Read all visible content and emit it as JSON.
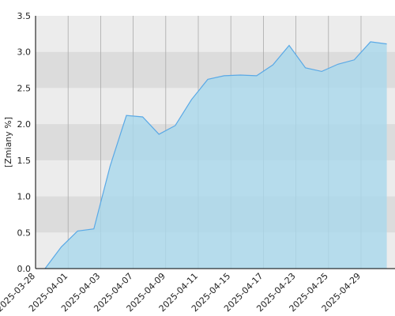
{
  "chart_data": {
    "type": "area",
    "y_label": "[Zmiany %]",
    "categories": [
      "2025-03-28",
      null,
      "2025-04-01",
      null,
      "2025-04-03",
      null,
      "2025-04-07",
      null,
      "2025-04-09",
      null,
      "2025-04-11",
      null,
      "2025-04-15",
      null,
      "2025-04-17",
      null,
      "2025-04-23",
      null,
      "2025-04-25",
      null,
      "2025-04-29",
      null
    ],
    "values": [
      0.0,
      0.3,
      0.52,
      0.55,
      1.42,
      2.12,
      2.1,
      1.86,
      1.98,
      2.34,
      2.62,
      2.67,
      2.68,
      2.67,
      2.82,
      3.09,
      2.78,
      2.73,
      2.83,
      2.89,
      3.14,
      3.11
    ],
    "color": "#5aa9e6",
    "ylim": [
      0,
      3.5
    ],
    "yticks": [
      {
        "value": 0,
        "label": "0.0"
      },
      {
        "value": 0.5,
        "label": "0.5"
      },
      {
        "value": 1,
        "label": "1.0"
      },
      {
        "value": 1.5,
        "label": "1.5"
      },
      {
        "value": 2,
        "label": "2.0"
      },
      {
        "value": 2.5,
        "label": "2.5"
      },
      {
        "value": 3,
        "label": "3.0"
      },
      {
        "value": 3.5,
        "label": "3.5"
      }
    ],
    "grid": true
  }
}
